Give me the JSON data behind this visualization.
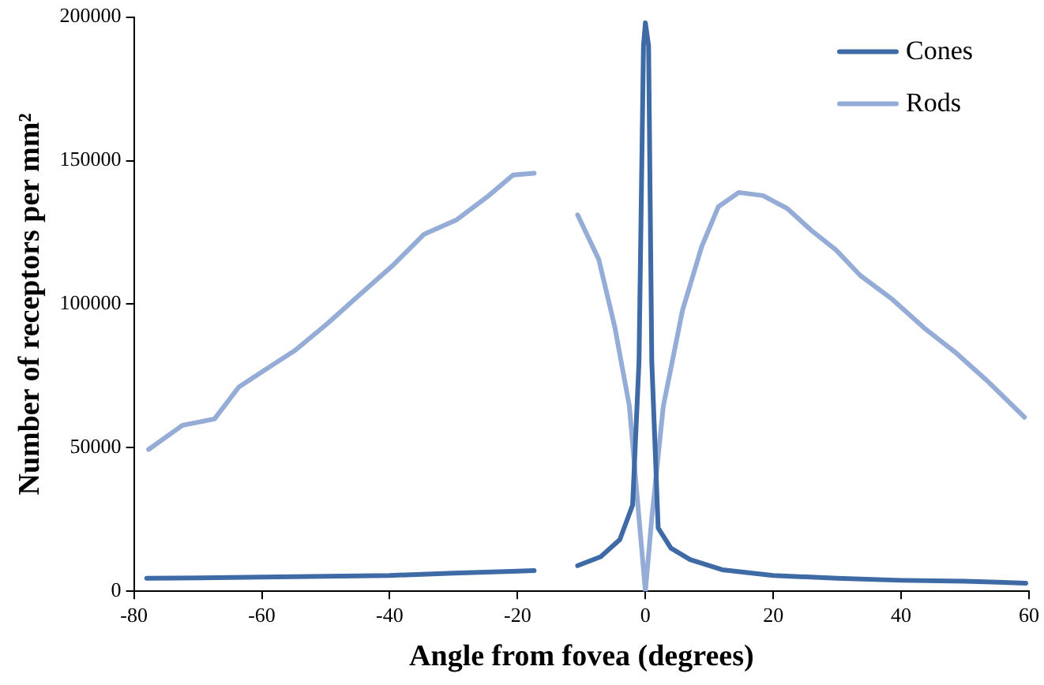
{
  "chart_data": {
    "type": "line",
    "xlabel": "Angle from fovea (degrees)",
    "ylabel": "Number of receptors per mm²",
    "xlim": [
      -80,
      60
    ],
    "xticks": [
      -80,
      -60,
      -40,
      -20,
      0,
      20,
      40,
      60
    ],
    "ylim": [
      0,
      200000
    ],
    "yticks": [
      0,
      50000,
      100000,
      150000,
      200000
    ],
    "grid": false,
    "legend": "top right",
    "marker": "none",
    "line_style": "solid",
    "series": [
      {
        "name": "Cones",
        "color": "#3e6aa6",
        "x": [
          -78,
          -60,
          -40,
          -30,
          -20,
          -17.4,
          -14,
          -10.6,
          -7,
          -4,
          -2,
          -1,
          -0.3,
          0,
          0.5,
          1,
          2,
          4,
          7,
          12,
          20,
          30,
          40,
          50,
          59.5
        ],
        "values": [
          4500,
          4900,
          5500,
          6300,
          7000,
          7200,
          null,
          8900,
          12000,
          18000,
          30000,
          80000,
          190000,
          198000,
          190000,
          80000,
          22000,
          15000,
          11000,
          7500,
          5500,
          4500,
          3800,
          3500,
          2800
        ]
      },
      {
        "name": "Rods",
        "color": "#94acd6",
        "x": [
          -77.7,
          -72.4,
          -67.4,
          -63.6,
          -59.8,
          -54.8,
          -49.7,
          -44.7,
          -39.6,
          -34.6,
          -29.5,
          -24.5,
          -20.7,
          -17.4,
          -14,
          -10.6,
          -7.3,
          -4.8,
          -2.5,
          -1,
          0,
          1,
          2.8,
          5.8,
          8.8,
          11.4,
          14.6,
          18.4,
          22.2,
          26,
          29.8,
          33.6,
          38.6,
          43.6,
          48.7,
          53.7,
          59.3
        ],
        "values": [
          49400,
          57800,
          60000,
          71100,
          76700,
          83900,
          93300,
          103300,
          113300,
          124400,
          129400,
          137800,
          145000,
          145600,
          null,
          131100,
          115600,
          92200,
          64400,
          25500,
          0,
          25500,
          64400,
          97800,
          120000,
          133900,
          138900,
          137800,
          133300,
          125600,
          118900,
          110000,
          101700,
          91700,
          82800,
          72800,
          60600
        ]
      }
    ]
  }
}
